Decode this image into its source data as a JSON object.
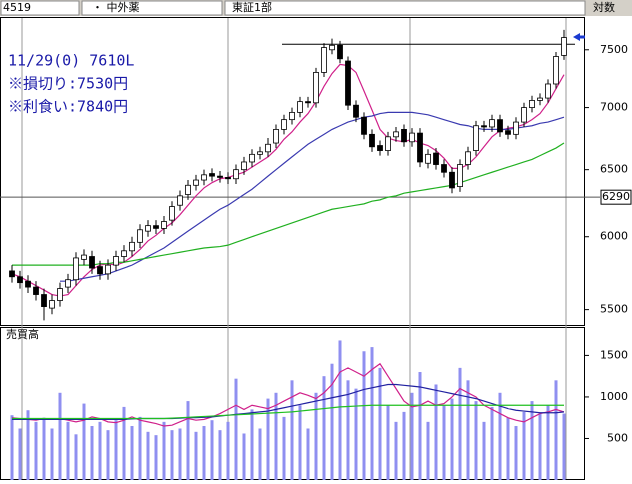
{
  "header": {
    "code": "4519",
    "name": "・ 中外薬",
    "market": "東証1部",
    "scale": "対数"
  },
  "chart_data": [
    {
      "type": "candlestick",
      "yscale": "log",
      "ylim": [
        5400,
        7790
      ],
      "yticks": [
        5500,
        6000,
        6500,
        7000,
        7500
      ],
      "up_color": "#ffffff",
      "down_color": "#000000",
      "resistance_line": 7550,
      "cursor_value": 6290,
      "annotations": [
        "11/29(0) 7610L",
        "※損切り:7530円",
        "※利食い:7840円"
      ],
      "open": [
        5760,
        5720,
        5690,
        5650,
        5600,
        5510,
        5560,
        5650,
        5700,
        5840,
        5860,
        5790,
        5740,
        5800,
        5860,
        5900,
        5960,
        6040,
        6080,
        6060,
        6120,
        6230,
        6310,
        6380,
        6420,
        6470,
        6450,
        6440,
        6430,
        6500,
        6560,
        6620,
        6640,
        6710,
        6820,
        6900,
        6960,
        7050,
        7040,
        7300,
        7500,
        7540,
        7400,
        7020,
        6920,
        6780,
        6690,
        6650,
        6760,
        6820,
        6720,
        6790,
        6550,
        6630,
        6540,
        6480,
        6370,
        6540,
        6650,
        6850,
        6840,
        6900,
        6810,
        6780,
        6880,
        7000,
        7060,
        7080,
        7200,
        7450
      ],
      "high": [
        5800,
        5760,
        5730,
        5690,
        5640,
        5600,
        5680,
        5740,
        5890,
        5910,
        5900,
        5830,
        5840,
        5900,
        5940,
        6000,
        6090,
        6120,
        6120,
        6150,
        6260,
        6340,
        6420,
        6460,
        6500,
        6510,
        6490,
        6480,
        6540,
        6600,
        6660,
        6680,
        6750,
        6860,
        6940,
        7000,
        7090,
        7090,
        7340,
        7560,
        7600,
        7580,
        7440,
        7060,
        6960,
        6820,
        6730,
        6800,
        6840,
        6860,
        6830,
        6830,
        6660,
        6670,
        6580,
        6520,
        6580,
        6680,
        6890,
        6890,
        6940,
        6940,
        6850,
        6920,
        7040,
        7100,
        7120,
        7240,
        7480,
        7680
      ],
      "low": [
        5680,
        5640,
        5610,
        5560,
        5430,
        5470,
        5520,
        5610,
        5660,
        5800,
        5740,
        5700,
        5700,
        5760,
        5820,
        5860,
        5920,
        6000,
        6020,
        6020,
        6080,
        6190,
        6270,
        6340,
        6380,
        6410,
        6400,
        6390,
        6390,
        6460,
        6520,
        6580,
        6600,
        6670,
        6780,
        6860,
        6920,
        7000,
        7000,
        7260,
        7460,
        7380,
        6980,
        6880,
        6740,
        6640,
        6610,
        6610,
        6720,
        6680,
        6680,
        6520,
        6510,
        6500,
        6440,
        6320,
        6330,
        6500,
        6610,
        6800,
        6800,
        6760,
        6740,
        6740,
        6840,
        6960,
        7020,
        7040,
        7160,
        7410
      ],
      "close": [
        5720,
        5680,
        5650,
        5600,
        5520,
        5560,
        5640,
        5700,
        5850,
        5870,
        5780,
        5740,
        5800,
        5860,
        5900,
        5960,
        6050,
        6080,
        6060,
        6110,
        6220,
        6300,
        6380,
        6420,
        6460,
        6450,
        6440,
        6430,
        6500,
        6560,
        6620,
        6640,
        6700,
        6820,
        6900,
        6960,
        7050,
        7040,
        7300,
        7520,
        7540,
        7420,
        7020,
        6920,
        6780,
        6680,
        6650,
        6760,
        6800,
        6720,
        6790,
        6560,
        6620,
        6540,
        6480,
        6360,
        6540,
        6640,
        6850,
        6840,
        6900,
        6800,
        6780,
        6880,
        7000,
        7060,
        7080,
        7200,
        7440,
        7610
      ],
      "moving_averages": [
        {
          "color": "#d0208a",
          "values": [
            5740,
            5720,
            5690,
            5660,
            5630,
            5600,
            5590,
            5600,
            5660,
            5720,
            5770,
            5800,
            5810,
            5800,
            5820,
            5860,
            5910,
            5970,
            6010,
            6060,
            6100,
            6160,
            6230,
            6300,
            6360,
            6400,
            6430,
            6440,
            6460,
            6480,
            6520,
            6560,
            6600,
            6660,
            6740,
            6800,
            6880,
            6950,
            7050,
            7180,
            7290,
            7370,
            7360,
            7300,
            7140,
            6980,
            6820,
            6750,
            6730,
            6720,
            6740,
            6710,
            6690,
            6650,
            6590,
            6510,
            6510,
            6540,
            6600,
            6680,
            6760,
            6810,
            6830,
            6840,
            6860,
            6900,
            6950,
            7040,
            7160,
            7280
          ]
        },
        {
          "color": "#3a3ab0",
          "values": [
            null,
            null,
            null,
            null,
            null,
            null,
            5690,
            5690,
            5700,
            5710,
            5720,
            5730,
            5740,
            5760,
            5780,
            5800,
            5830,
            5860,
            5890,
            5920,
            5960,
            6000,
            6040,
            6080,
            6120,
            6160,
            6200,
            6230,
            6270,
            6310,
            6350,
            6400,
            6450,
            6500,
            6550,
            6600,
            6650,
            6700,
            6740,
            6780,
            6820,
            6850,
            6880,
            6900,
            6920,
            6930,
            6950,
            6960,
            6960,
            6960,
            6960,
            6950,
            6940,
            6920,
            6900,
            6880,
            6860,
            6850,
            6830,
            6820,
            6820,
            6820,
            6820,
            6830,
            6840,
            6850,
            6870,
            6880,
            6900,
            6920
          ]
        },
        {
          "color": "#20b020",
          "values": [
            5800,
            5800,
            5800,
            5800,
            5800,
            5800,
            5800,
            5800,
            5800,
            5800,
            5800,
            5810,
            5810,
            5820,
            5820,
            5830,
            5840,
            5850,
            5860,
            5870,
            5880,
            5890,
            5900,
            5910,
            5920,
            5925,
            5930,
            5940,
            5960,
            5980,
            6000,
            6020,
            6040,
            6060,
            6080,
            6100,
            6120,
            6140,
            6160,
            6180,
            6200,
            6210,
            6220,
            6230,
            6240,
            6260,
            6270,
            6290,
            6300,
            6320,
            6330,
            6340,
            6350,
            6360,
            6370,
            6380,
            6400,
            6420,
            6440,
            6460,
            6480,
            6500,
            6520,
            6540,
            6560,
            6580,
            6610,
            6640,
            6670,
            6710
          ]
        }
      ]
    },
    {
      "type": "bar",
      "label": "売買高",
      "color": "#8f8ff0",
      "ylim": [
        0,
        1830
      ],
      "yticks": [
        500,
        1000,
        1500
      ],
      "values": [
        780,
        620,
        840,
        700,
        750,
        620,
        1050,
        700,
        550,
        920,
        650,
        700,
        600,
        720,
        880,
        650,
        760,
        580,
        540,
        700,
        600,
        620,
        950,
        580,
        650,
        720,
        600,
        700,
        1220,
        560,
        850,
        620,
        980,
        1050,
        760,
        1200,
        900,
        620,
        1050,
        1250,
        1400,
        1680,
        1200,
        1100,
        1550,
        1600,
        1350,
        900,
        700,
        820,
        1050,
        1300,
        700,
        1150,
        900,
        980,
        1350,
        1200,
        950,
        700,
        880,
        1050,
        750,
        650,
        820,
        950,
        800,
        900,
        1200,
        800
      ],
      "moving_averages": [
        {
          "color": "#d0208a",
          "values": [
            750,
            740,
            730,
            720,
            740,
            730,
            740,
            720,
            700,
            720,
            760,
            740,
            700,
            690,
            720,
            760,
            720,
            700,
            680,
            650,
            660,
            700,
            740,
            720,
            730,
            760,
            800,
            850,
            900,
            850,
            900,
            880,
            860,
            900,
            950,
            1000,
            1050,
            1020,
            980,
            1050,
            1150,
            1300,
            1350,
            1300,
            1250,
            1330,
            1400,
            1250,
            1100,
            950,
            880,
            900,
            950,
            900,
            920,
            1000,
            1100,
            1050,
            1000,
            900,
            850,
            800,
            750,
            720,
            700,
            750,
            800,
            820,
            850,
            820
          ]
        },
        {
          "color": "#2020a0",
          "values": [
            730,
            730,
            730,
            730,
            730,
            730,
            730,
            730,
            730,
            730,
            730,
            730,
            730,
            730,
            730,
            735,
            740,
            740,
            740,
            740,
            740,
            745,
            750,
            750,
            755,
            760,
            770,
            780,
            790,
            800,
            810,
            820,
            830,
            850,
            870,
            890,
            910,
            930,
            950,
            970,
            990,
            1010,
            1030,
            1060,
            1090,
            1110,
            1130,
            1150,
            1150,
            1140,
            1130,
            1120,
            1100,
            1080,
            1060,
            1040,
            1020,
            1000,
            980,
            950,
            920,
            890,
            860,
            840,
            830,
            820,
            810,
            810,
            810,
            820
          ]
        },
        {
          "color": "#20c020",
          "values": [
            740,
            740,
            740,
            740,
            740,
            740,
            740,
            740,
            740,
            740,
            740,
            740,
            740,
            740,
            740,
            740,
            740,
            740,
            740,
            740,
            745,
            750,
            755,
            760,
            765,
            770,
            775,
            780,
            785,
            790,
            795,
            800,
            805,
            810,
            815,
            820,
            830,
            840,
            850,
            860,
            870,
            880,
            885,
            890,
            895,
            900,
            900,
            900,
            900,
            900,
            900,
            900,
            900,
            900,
            900,
            900,
            900,
            900,
            900,
            900,
            900,
            900,
            900,
            900,
            900,
            900,
            900,
            900,
            900,
            900
          ]
        }
      ]
    }
  ]
}
